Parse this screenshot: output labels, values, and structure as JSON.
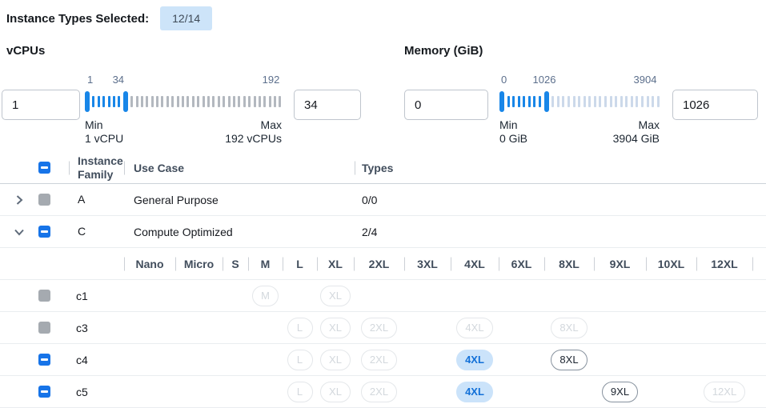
{
  "colors": {
    "accent_blue": "#1774e8",
    "slider_tick_active": "#1886e8",
    "slider_tick_inactive_gray": "#b3b8bf",
    "slider_tick_inactive_blue": "#ccd9ea",
    "badge_bg": "#cde4f9",
    "pill_selected_bg": "#cbe3fa",
    "pill_selected_text": "#1270d8",
    "disabled_gray": "#a5aab0"
  },
  "header": {
    "label": "Instance Types Selected:",
    "badge": "12/14"
  },
  "filters": {
    "vcpus": {
      "title": "vCPUs",
      "min_value": "1",
      "max_value": "34",
      "scale": {
        "min": "1",
        "current": "34",
        "max": "192"
      },
      "min_caption": "Min",
      "min_detail": "1 vCPU",
      "max_caption": "Max",
      "max_detail": "192 vCPUs",
      "ticks": {
        "active": 6,
        "inactive": 30
      }
    },
    "memory": {
      "title": "Memory (GiB)",
      "min_value": "0",
      "max_value": "1026",
      "scale": {
        "min": "0",
        "current": "1026",
        "max": "3904"
      },
      "min_caption": "Min",
      "min_detail": "0 GiB",
      "max_caption": "Max",
      "max_detail": "3904 GiB",
      "ticks": {
        "active": 7,
        "inactive": 21
      }
    }
  },
  "table": {
    "columns": {
      "family": "Instance Family",
      "use_case": "Use Case",
      "types": "Types"
    },
    "family_rows": [
      {
        "id": "A",
        "use_case": "General Purpose",
        "types": "0/0",
        "expanded": false,
        "checkbox": "disabled"
      },
      {
        "id": "C",
        "use_case": "Compute Optimized",
        "types": "2/4",
        "expanded": true,
        "checkbox": "indeterminate"
      }
    ],
    "sizes": [
      "Nano",
      "Micro",
      "S",
      "M",
      "L",
      "XL",
      "2XL",
      "3XL",
      "4XL",
      "6XL",
      "8XL",
      "9XL",
      "10XL",
      "12XL"
    ],
    "size_rows": [
      {
        "id": "c1",
        "checkbox": "disabled",
        "pills": {
          "M": "disabled",
          "XL": "disabled"
        }
      },
      {
        "id": "c3",
        "checkbox": "disabled",
        "pills": {
          "L": "disabled",
          "XL": "disabled",
          "2XL": "disabled",
          "4XL": "disabled",
          "8XL": "disabled"
        }
      },
      {
        "id": "c4",
        "checkbox": "indeterminate",
        "pills": {
          "L": "disabled",
          "XL": "disabled",
          "2XL": "disabled",
          "4XL": "selected",
          "8XL": "enabled"
        }
      },
      {
        "id": "c5",
        "checkbox": "indeterminate",
        "pills": {
          "L": "disabled",
          "XL": "disabled",
          "2XL": "disabled",
          "4XL": "selected",
          "9XL": "enabled",
          "12XL": "disabled"
        }
      }
    ]
  }
}
